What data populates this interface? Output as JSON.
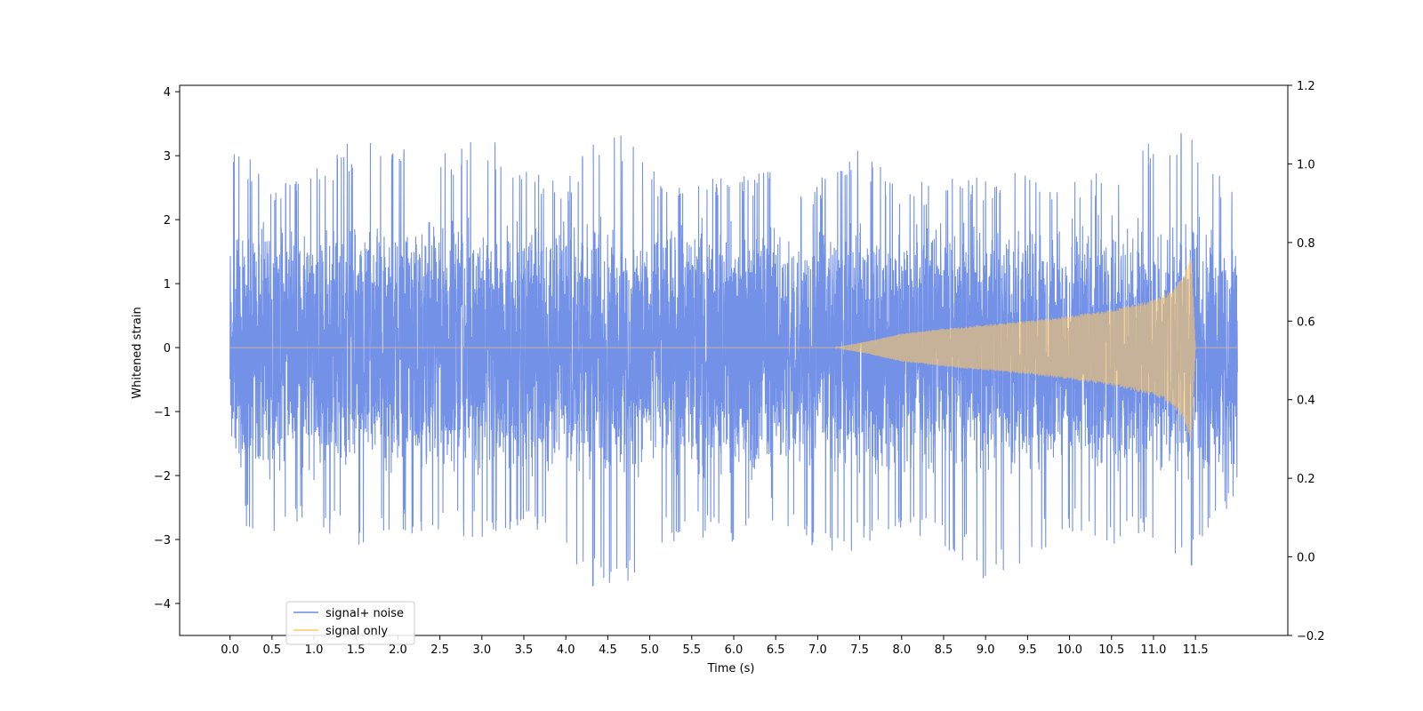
{
  "chart_data": {
    "type": "line",
    "xlabel": "Time (s)",
    "ylabel": "Whitened strain",
    "xlim": [
      -0.6,
      12.6
    ],
    "ylim": [
      -4.5,
      4.1
    ],
    "y2lim": [
      -0.2,
      1.2
    ],
    "xticks": [
      0.0,
      0.5,
      1.0,
      1.5,
      2.0,
      2.5,
      3.0,
      3.5,
      4.0,
      4.5,
      5.0,
      5.5,
      6.0,
      6.5,
      7.0,
      7.5,
      8.0,
      8.5,
      9.0,
      9.5,
      10.0,
      10.5,
      11.0,
      11.5
    ],
    "xtick_labels": [
      "0.0",
      "0.5",
      "1.0",
      "1.5",
      "2.0",
      "2.5",
      "3.0",
      "3.5",
      "4.0",
      "4.5",
      "5.0",
      "5.5",
      "6.0",
      "6.5",
      "7.0",
      "7.5",
      "8.0",
      "8.5",
      "9.0",
      "9.5",
      "10.0",
      "10.5",
      "11.0",
      "11.5"
    ],
    "yticks": [
      -4,
      -3,
      -2,
      -1,
      0,
      1,
      2,
      3,
      4
    ],
    "ytick_labels": [
      "−4",
      "−3",
      "−2",
      "−1",
      "0",
      "1",
      "2",
      "3",
      "4"
    ],
    "y2ticks": [
      -0.2,
      0.0,
      0.2,
      0.4,
      0.6,
      0.8,
      1.0,
      1.2
    ],
    "y2tick_labels": [
      "−0.2",
      "0.0",
      "0.2",
      "0.4",
      "0.6",
      "0.8",
      "1.0",
      "1.2"
    ],
    "legend_placement": "lower-left",
    "grid": false,
    "series": [
      {
        "name": "signal+ noise",
        "color": "#6a8be6",
        "x_range": [
          0.0,
          12.0
        ],
        "envelope_note_points": {
          "t": [
            0.0,
            0.5,
            1.0,
            1.5,
            2.0,
            2.5,
            3.0,
            3.5,
            4.0,
            4.5,
            5.0,
            5.5,
            6.0,
            6.5,
            7.0,
            7.5,
            8.0,
            8.5,
            9.0,
            9.5,
            10.0,
            10.5,
            11.0,
            11.5,
            12.0
          ],
          "upper": [
            3.3,
            2.7,
            2.8,
            3.3,
            3.2,
            3.0,
            3.5,
            2.8,
            2.6,
            3.7,
            2.8,
            2.6,
            2.7,
            2.8,
            2.6,
            3.2,
            2.5,
            2.7,
            2.7,
            2.8,
            2.6,
            2.9,
            3.4,
            3.4,
            2.3
          ],
          "lower": [
            -2.6,
            -3.1,
            -2.8,
            -3.1,
            -2.9,
            -3.0,
            -3.0,
            -2.9,
            -3.2,
            -4.1,
            -3.2,
            -2.9,
            -3.2,
            -2.7,
            -3.2,
            -3.2,
            -3.1,
            -3.1,
            -3.7,
            -3.3,
            -2.9,
            -3.2,
            -3.0,
            -3.5,
            -2.2
          ]
        }
      },
      {
        "name": "signal only",
        "color": "#ffc864",
        "x_range": [
          0.0,
          12.0
        ],
        "amplitude_points": {
          "t": [
            0.0,
            7.2,
            7.6,
            8.0,
            8.5,
            9.0,
            9.5,
            10.0,
            10.5,
            11.0,
            11.2,
            11.35,
            11.45,
            11.5,
            12.0
          ],
          "amp": [
            0.0,
            0.0,
            0.1,
            0.22,
            0.3,
            0.36,
            0.42,
            0.5,
            0.6,
            0.75,
            0.88,
            1.1,
            1.5,
            0.0,
            0.0
          ]
        }
      }
    ]
  }
}
